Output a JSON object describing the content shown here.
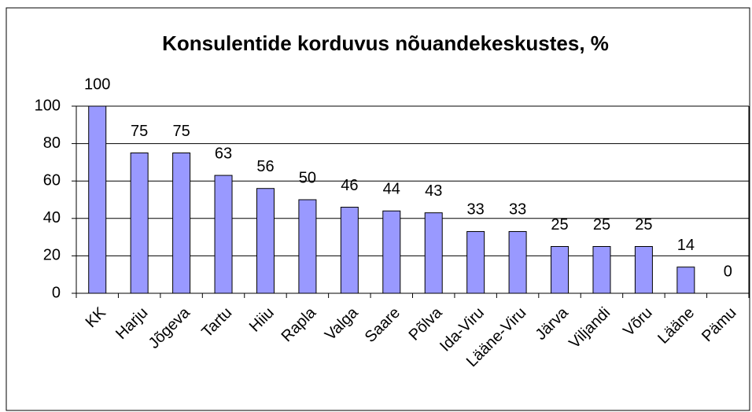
{
  "chart_data": {
    "type": "bar",
    "title": "Konsulentide korduvus nõuandekeskustes, %",
    "categories": [
      "KK",
      "Harju",
      "Jõgeva",
      "Tartu",
      "Hiiu",
      "Rapla",
      "Valga",
      "Saare",
      "Põlva",
      "Ida-Viru",
      "Lääne-Viru",
      "Järva",
      "Viljandi",
      "Võru",
      "Lääne",
      "Pämu"
    ],
    "values": [
      100,
      75,
      75,
      63,
      56,
      50,
      46,
      44,
      43,
      33,
      33,
      25,
      25,
      25,
      14,
      0
    ],
    "color": "#9999ff",
    "ylim": [
      0,
      100
    ],
    "yticks": [
      0,
      20,
      40,
      60,
      80,
      100
    ],
    "grid": true
  }
}
